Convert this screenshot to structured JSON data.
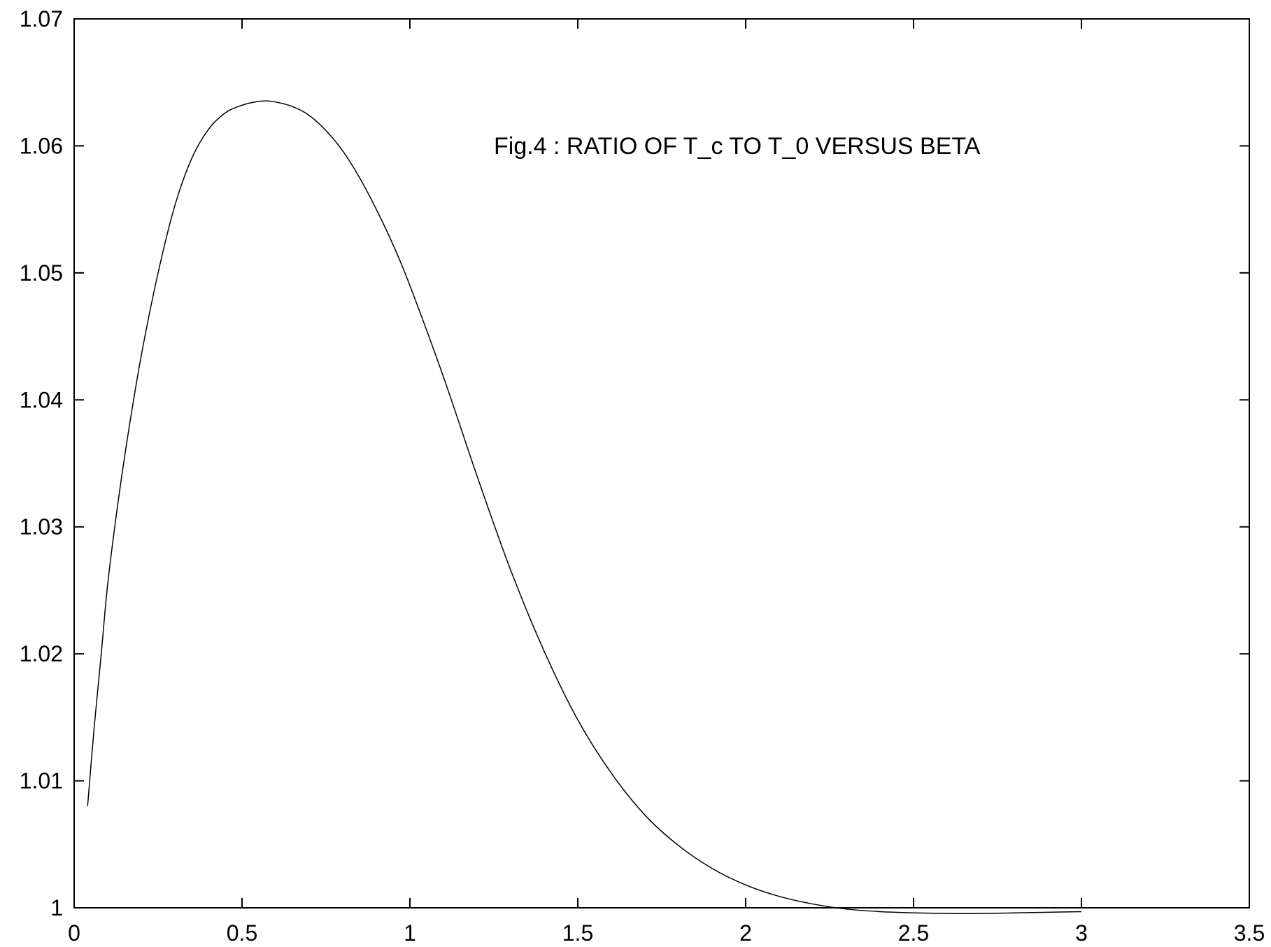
{
  "chart_data": {
    "type": "line",
    "title": "Fig.4 : RATIO OF T_c TO T_0 VERSUS BETA",
    "xlabel": "",
    "ylabel": "",
    "xlim": [
      0,
      3.5
    ],
    "ylim": [
      1,
      1.07
    ],
    "xticks": [
      {
        "value": 0,
        "label": "0"
      },
      {
        "value": 0.5,
        "label": "0.5"
      },
      {
        "value": 1,
        "label": "1"
      },
      {
        "value": 1.5,
        "label": "1.5"
      },
      {
        "value": 2,
        "label": "2"
      },
      {
        "value": 2.5,
        "label": "2.5"
      },
      {
        "value": 3,
        "label": "3"
      },
      {
        "value": 3.5,
        "label": "3.5"
      }
    ],
    "yticks": [
      {
        "value": 1,
        "label": "1"
      },
      {
        "value": 1.01,
        "label": "1.01"
      },
      {
        "value": 1.02,
        "label": "1.02"
      },
      {
        "value": 1.03,
        "label": "1.03"
      },
      {
        "value": 1.04,
        "label": "1.04"
      },
      {
        "value": 1.05,
        "label": "1.05"
      },
      {
        "value": 1.06,
        "label": "1.06"
      },
      {
        "value": 1.07,
        "label": "1.07"
      }
    ],
    "grid": false,
    "legend": "none",
    "series": [
      {
        "color": "#000000",
        "x": [
          0.04,
          0.06,
          0.08,
          0.1,
          0.13,
          0.16,
          0.2,
          0.25,
          0.3,
          0.35,
          0.4,
          0.45,
          0.5,
          0.55,
          0.59,
          0.65,
          0.7,
          0.75,
          0.8,
          0.85,
          0.9,
          0.95,
          1.0,
          1.1,
          1.2,
          1.3,
          1.4,
          1.5,
          1.6,
          1.7,
          1.8,
          1.9,
          2.0,
          2.1,
          2.2,
          2.3,
          2.4,
          2.5,
          2.6,
          2.7,
          2.8,
          2.9,
          3.0
        ],
        "y": [
          1.008,
          1.0143,
          1.0198,
          1.0255,
          1.0318,
          1.0372,
          1.0435,
          1.05,
          1.0553,
          1.059,
          1.0613,
          1.0626,
          1.0632,
          1.0635,
          1.0635,
          1.0631,
          1.0624,
          1.0612,
          1.0596,
          1.0575,
          1.055,
          1.0522,
          1.049,
          1.0418,
          1.034,
          1.0266,
          1.0202,
          1.0148,
          1.0106,
          1.0073,
          1.0049,
          1.0031,
          1.0018,
          1.0009,
          1.0003,
          0.9999,
          0.9997,
          0.9996,
          0.99955,
          0.99955,
          0.9996,
          0.99965,
          0.9997
        ]
      }
    ]
  }
}
